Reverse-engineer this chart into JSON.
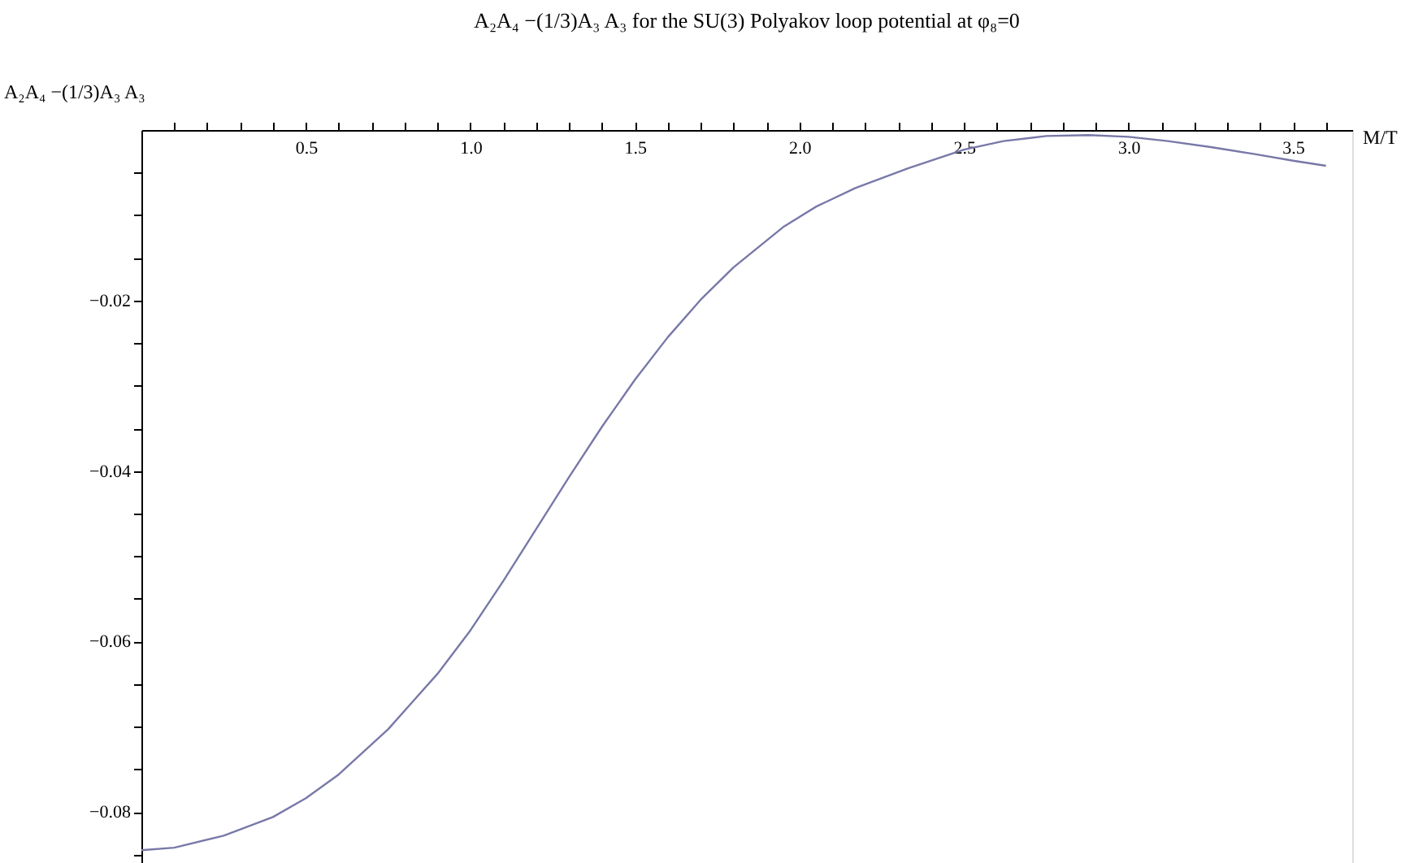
{
  "chart_data": {
    "type": "line",
    "title": "A₂A₄ −(1/3)A₃ A₃  for the SU(3) Polyakov loop potential at φ₈=0",
    "ylabel": "A₂A₄ −(1/3)A₃ A₃",
    "xlabel": "M/T",
    "x": [
      0.0,
      0.1,
      0.25,
      0.4,
      0.5,
      0.6,
      0.75,
      0.9,
      1.0,
      1.1,
      1.2,
      1.3,
      1.4,
      1.5,
      1.6,
      1.7,
      1.8,
      1.95,
      2.05,
      2.17,
      2.33,
      2.5,
      2.62,
      2.75,
      2.88,
      3.0,
      3.12,
      3.25,
      3.38,
      3.5,
      3.6
    ],
    "series": [
      {
        "color": "#7878a8",
        "values": [
          -0.0845,
          -0.0842,
          -0.0828,
          -0.0806,
          -0.0784,
          -0.0756,
          -0.0703,
          -0.0638,
          -0.0587,
          -0.0529,
          -0.0468,
          -0.0407,
          -0.0348,
          -0.0293,
          -0.0243,
          -0.0199,
          -0.0161,
          -0.0114,
          -0.009,
          -0.0068,
          -0.0045,
          -0.0023,
          -0.0013,
          -0.0007,
          -0.0006,
          -0.0008,
          -0.0013,
          -0.002,
          -0.0028,
          -0.0036,
          -0.0042
        ]
      }
    ],
    "xlim": [
      0.0,
      3.68
    ],
    "ylim": [
      -0.086,
      0.0
    ],
    "xticks": [
      {
        "value": 0.1,
        "label": null
      },
      {
        "value": 0.2,
        "label": null
      },
      {
        "value": 0.3,
        "label": null
      },
      {
        "value": 0.4,
        "label": null
      },
      0.5,
      {
        "value": 0.6,
        "label": null
      },
      {
        "value": 0.7,
        "label": null
      },
      {
        "value": 0.8,
        "label": null
      },
      {
        "value": 0.9,
        "label": null
      },
      {
        "value": 1.0,
        "label": "1.0"
      },
      {
        "value": 1.1,
        "label": null
      },
      {
        "value": 1.2,
        "label": null
      },
      {
        "value": 1.3,
        "label": null
      },
      {
        "value": 1.4,
        "label": null
      },
      1.5,
      {
        "value": 1.6,
        "label": null
      },
      {
        "value": 1.7,
        "label": null
      },
      {
        "value": 1.8,
        "label": null
      },
      {
        "value": 1.9,
        "label": null
      },
      {
        "value": 2.0,
        "label": "2.0"
      },
      {
        "value": 2.1,
        "label": null
      },
      {
        "value": 2.2,
        "label": null
      },
      {
        "value": 2.3,
        "label": null
      },
      {
        "value": 2.4,
        "label": null
      },
      2.5,
      {
        "value": 2.6,
        "label": null
      },
      {
        "value": 2.7,
        "label": null
      },
      {
        "value": 2.8,
        "label": null
      },
      {
        "value": 2.9,
        "label": null
      },
      {
        "value": 3.0,
        "label": "3.0"
      },
      {
        "value": 3.1,
        "label": null
      },
      {
        "value": 3.2,
        "label": null
      },
      {
        "value": 3.3,
        "label": null
      },
      {
        "value": 3.4,
        "label": null
      },
      3.5,
      {
        "value": 3.6,
        "label": null
      }
    ],
    "yticks": [
      {
        "value": -0.005,
        "label": null
      },
      {
        "value": -0.01,
        "label": null
      },
      {
        "value": -0.015,
        "label": null
      },
      {
        "value": -0.02,
        "label": "−0.02"
      },
      {
        "value": -0.025,
        "label": null
      },
      {
        "value": -0.03,
        "label": null
      },
      {
        "value": -0.035,
        "label": null
      },
      {
        "value": -0.04,
        "label": "−0.04"
      },
      {
        "value": -0.045,
        "label": null
      },
      {
        "value": -0.05,
        "label": null
      },
      {
        "value": -0.055,
        "label": null
      },
      {
        "value": -0.06,
        "label": "−0.06"
      },
      {
        "value": -0.065,
        "label": null
      },
      {
        "value": -0.07,
        "label": null
      },
      {
        "value": -0.075,
        "label": null
      },
      {
        "value": -0.08,
        "label": "−0.08"
      },
      {
        "value": -0.085,
        "label": null
      }
    ],
    "grid": false,
    "line_style": "solid",
    "marker": "none"
  }
}
